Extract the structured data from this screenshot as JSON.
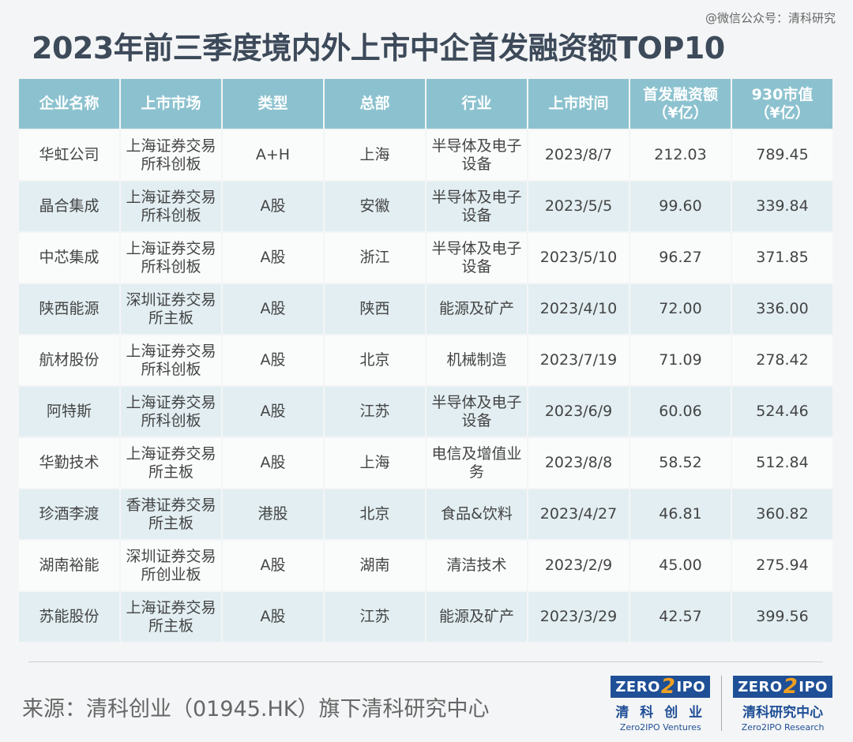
{
  "watermark": "@微信公众号：清科研究",
  "title": "2023年前三季度境内外上市中企首发融资额TOP10",
  "table": {
    "headers": [
      "企业名称",
      "上市市场",
      "类型",
      "总部",
      "行业",
      "上市时间",
      "首发融资额\n（¥亿）",
      "930市值\n（¥亿）"
    ],
    "rows": [
      [
        "华虹公司",
        "上海证券交易\n所科创板",
        "A+H",
        "上海",
        "半导体及电子\n设备",
        "2023/8/7",
        "212.03",
        "789.45"
      ],
      [
        "晶合集成",
        "上海证券交易\n所科创板",
        "A股",
        "安徽",
        "半导体及电子\n设备",
        "2023/5/5",
        "99.60",
        "339.84"
      ],
      [
        "中芯集成",
        "上海证券交易\n所科创板",
        "A股",
        "浙江",
        "半导体及电子\n设备",
        "2023/5/10",
        "96.27",
        "371.85"
      ],
      [
        "陕西能源",
        "深圳证券交易\n所主板",
        "A股",
        "陕西",
        "能源及矿产",
        "2023/4/10",
        "72.00",
        "336.00"
      ],
      [
        "航材股份",
        "上海证券交易\n所科创板",
        "A股",
        "北京",
        "机械制造",
        "2023/7/19",
        "71.09",
        "278.42"
      ],
      [
        "阿特斯",
        "上海证券交易\n所科创板",
        "A股",
        "江苏",
        "半导体及电子\n设备",
        "2023/6/9",
        "60.06",
        "524.46"
      ],
      [
        "华勤技术",
        "上海证券交易\n所主板",
        "A股",
        "上海",
        "电信及增值业\n务",
        "2023/8/8",
        "58.52",
        "512.84"
      ],
      [
        "珍酒李渡",
        "香港证券交易\n所主板",
        "港股",
        "北京",
        "食品&饮料",
        "2023/4/27",
        "46.81",
        "360.82"
      ],
      [
        "湖南裕能",
        "深圳证券交易\n所创业板",
        "A股",
        "湖南",
        "清洁技术",
        "2023/2/9",
        "45.00",
        "275.94"
      ],
      [
        "苏能股份",
        "上海证券交易\n所主板",
        "A股",
        "江苏",
        "能源及矿产",
        "2023/3/29",
        "42.57",
        "399.56"
      ]
    ]
  },
  "source": "来源：清科创业（01945.HK）旗下清科研究中心",
  "logos": [
    {
      "left": "ZERO",
      "mid": "2",
      "right": "IPO",
      "cn": "清 科 创 业",
      "en": "Zero2IPO Ventures"
    },
    {
      "left": "ZERO",
      "mid": "2",
      "right": "IPO",
      "cn": "清科研究中心",
      "en": "Zero2IPO Research"
    }
  ],
  "colors": {
    "header_bg": "#8cc2cf",
    "row_alt": "#e2eef2",
    "logo_blue": "#1f4f96",
    "logo_orange": "#f0a020"
  }
}
